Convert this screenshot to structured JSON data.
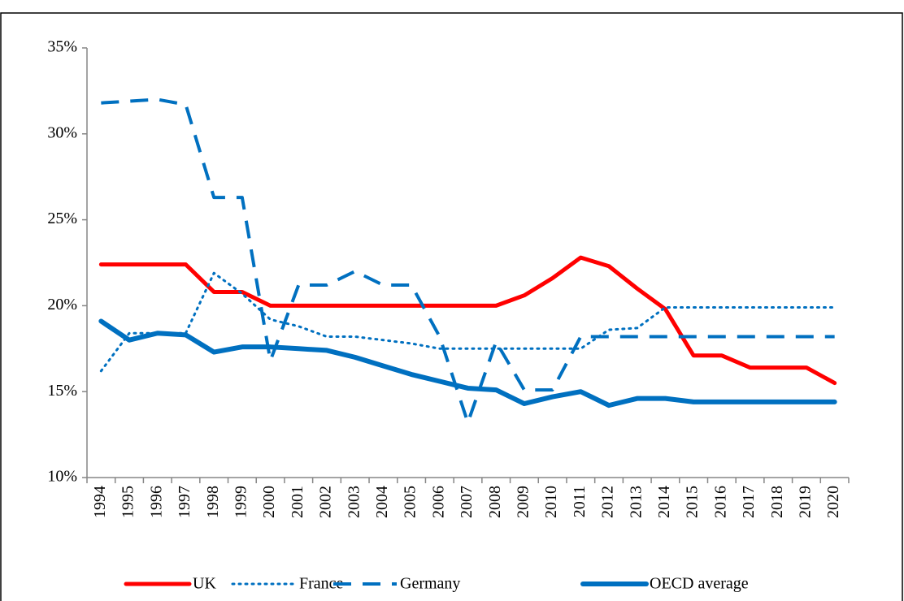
{
  "chart_data": {
    "type": "line",
    "categories": [
      "1994",
      "1995",
      "1996",
      "1997",
      "1998",
      "1999",
      "2000",
      "2001",
      "2002",
      "2003",
      "2004",
      "2005",
      "2006",
      "2007",
      "2008",
      "2009",
      "2010",
      "2011",
      "2012",
      "2013",
      "2014",
      "2015",
      "2016",
      "2017",
      "2018",
      "2019",
      "2020"
    ],
    "series": [
      {
        "name": "UK",
        "color": "#ff0000",
        "dash": "solid",
        "values": [
          22.4,
          22.4,
          22.4,
          22.4,
          20.8,
          20.8,
          20,
          20,
          20,
          20,
          20,
          20,
          20,
          20,
          20,
          20.6,
          21.6,
          22.8,
          22.3,
          21,
          19.8,
          17.1,
          17.1,
          16.4,
          16.4,
          16.4,
          15.5
        ]
      },
      {
        "name": "France",
        "color": "#0070c0",
        "dash": "dotted",
        "values": [
          16.2,
          18.4,
          18.4,
          18.4,
          21.9,
          20.7,
          19.2,
          18.8,
          18.2,
          18.2,
          18.0,
          17.8,
          17.5,
          17.5,
          17.5,
          17.5,
          17.5,
          17.5,
          18.6,
          18.7,
          19.9,
          19.9,
          19.9,
          19.9,
          19.9,
          19.9,
          19.9
        ]
      },
      {
        "name": "Germany",
        "color": "#0070c0",
        "dash": "dashed",
        "values": [
          31.8,
          31.9,
          32,
          31.7,
          26.3,
          26.3,
          16.8,
          21.2,
          21.2,
          22.0,
          21.2,
          21.2,
          18.2,
          13.2,
          17.9,
          15.1,
          15.1,
          18.2,
          18.2,
          18.2,
          18.2,
          18.2,
          18.2,
          18.2,
          18.2,
          18.2,
          18.2
        ]
      },
      {
        "name": "OECD average",
        "color": "#0070c0",
        "dash": "solid",
        "values": [
          19.1,
          18.0,
          18.4,
          18.3,
          17.3,
          17.6,
          17.6,
          17.5,
          17.4,
          17.0,
          16.5,
          16.0,
          15.6,
          15.2,
          15.1,
          14.3,
          14.7,
          15.0,
          14.2,
          14.6,
          14.6,
          14.4,
          14.4,
          14.4,
          14.4,
          14.4,
          14.4
        ]
      }
    ],
    "ylim": [
      10,
      35
    ],
    "yticks": [
      {
        "value": 10,
        "label": "10%"
      },
      {
        "value": 15,
        "label": "15%"
      },
      {
        "value": 20,
        "label": "20%"
      },
      {
        "value": 25,
        "label": "25%"
      },
      {
        "value": 30,
        "label": "30%"
      },
      {
        "value": 35,
        "label": "35%"
      }
    ],
    "grid": false,
    "legend": "bottom"
  }
}
